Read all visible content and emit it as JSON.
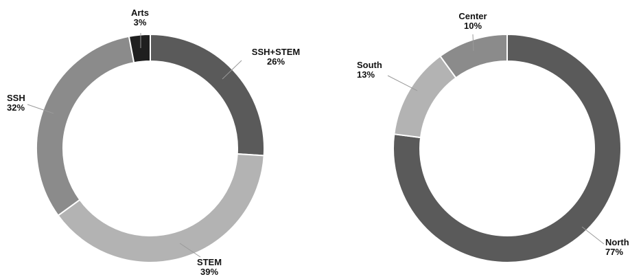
{
  "chart_data": [
    {
      "type": "pie",
      "variant": "donut",
      "title": "",
      "start_angle_deg": 0,
      "direction": "clockwise",
      "slices": [
        {
          "label": "SSH+STEM",
          "value": 26,
          "value_label": "26%",
          "color": "#5a5a5a"
        },
        {
          "label": "STEM",
          "value": 39,
          "value_label": "39%",
          "color": "#b3b3b3"
        },
        {
          "label": "SSH",
          "value": 32,
          "value_label": "32%",
          "color": "#8b8b8b"
        },
        {
          "label": "Arts",
          "value": 3,
          "value_label": "3%",
          "color": "#1f1f1f"
        }
      ]
    },
    {
      "type": "pie",
      "variant": "donut",
      "title": "",
      "start_angle_deg": 0,
      "direction": "clockwise",
      "slices": [
        {
          "label": "North",
          "value": 77,
          "value_label": "77%",
          "color": "#5a5a5a"
        },
        {
          "label": "South",
          "value": 13,
          "value_label": "13%",
          "color": "#b3b3b3"
        },
        {
          "label": "Center",
          "value": 10,
          "value_label": "10%",
          "color": "#8b8b8b"
        }
      ]
    }
  ]
}
